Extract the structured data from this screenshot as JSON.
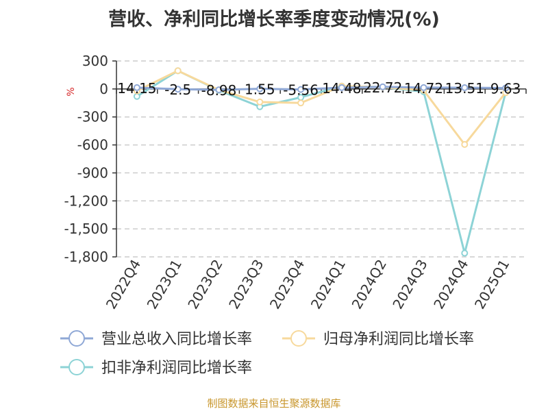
{
  "chart_data": {
    "type": "line",
    "title": "营收、净利同比增长率季度变动情况(%)",
    "ylabel": "%",
    "categories": [
      "2022Q4",
      "2023Q1",
      "2023Q2",
      "2023Q3",
      "2023Q4",
      "2024Q1",
      "2024Q2",
      "2024Q3",
      "2024Q4",
      "2025Q1"
    ],
    "ylim": [
      -1800,
      300
    ],
    "yticks": [
      300,
      0,
      -300,
      -600,
      -900,
      -1200,
      -1500,
      -1800
    ],
    "ytick_labels": [
      "300",
      "0",
      "-300",
      "-600",
      "-900",
      "-1,200",
      "-1,500",
      "-1,800"
    ],
    "grid": true,
    "legend": "bottom",
    "series": [
      {
        "name": "营业总收入同比增长率",
        "color": "#8fa8d6",
        "values": [
          14.15,
          -2.5,
          -8.98,
          1.55,
          -5.56,
          14.48,
          22.72,
          14.72,
          13.51,
          9.63
        ],
        "labels": [
          "14.15",
          "-2.5",
          "-8.98",
          "1.55",
          "-5.56",
          "14.48",
          "22.72",
          "14.72",
          "13.51",
          "9.63"
        ]
      },
      {
        "name": "归母净利润同比增长率",
        "color": "#f7d99c",
        "values": [
          -20,
          195,
          -10,
          -140,
          -150,
          30,
          20,
          -15,
          -595,
          -40
        ]
      },
      {
        "name": "扣非净利润同比增长率",
        "color": "#8dd3d6",
        "values": [
          -80,
          195,
          -15,
          -190,
          -90,
          30,
          20,
          -30,
          -1760,
          -40
        ]
      }
    ]
  },
  "source": "制图数据来自恒生聚源数据库"
}
